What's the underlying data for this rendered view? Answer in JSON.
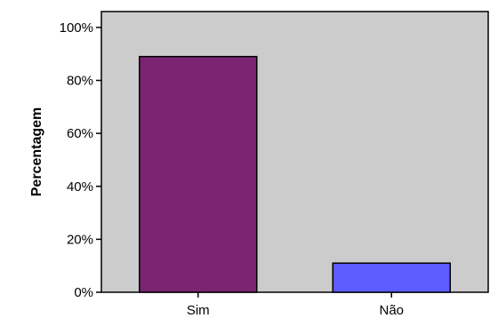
{
  "chart_data": {
    "type": "bar",
    "title": "",
    "xlabel": "",
    "ylabel": "Percentagem",
    "categories": [
      "Sim",
      "Não"
    ],
    "values": [
      89,
      11
    ],
    "ylim": [
      0,
      106
    ],
    "yticks": [
      0,
      20,
      40,
      60,
      80,
      100
    ],
    "ytick_labels": [
      "0%",
      "20%",
      "40%",
      "60%",
      "80%",
      "100%"
    ],
    "bar_colors": [
      "#7b2572",
      "#5c5cff"
    ],
    "plot_background": "#cccccc",
    "grid": false,
    "legend": "none"
  }
}
